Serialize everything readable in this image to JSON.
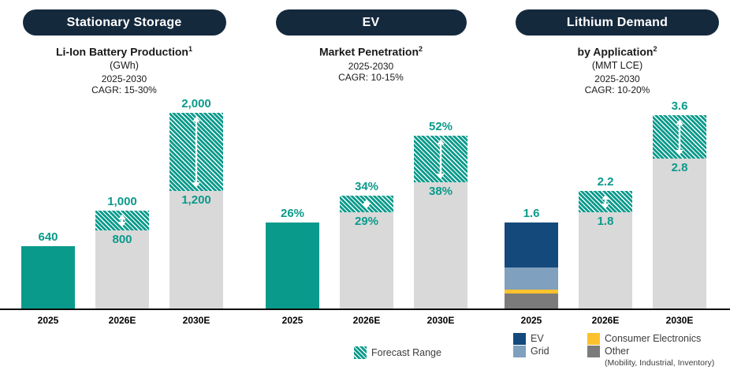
{
  "colors": {
    "teal": "#0A9A8B",
    "badge_navy": "#15293D",
    "bar_gray": "#D9D9D9",
    "ev_navy": "#14497B",
    "grid_blue": "#7FA0BE",
    "consumer_electronics_yellow": "#FCC22E",
    "other_gray": "#7B7B7B",
    "axis_black": "#060606",
    "title_dark": "#1A1A1A",
    "arrow_white": "#FFFFFF"
  },
  "panels": [
    {
      "badge": "Stationary Storage",
      "title": "Li-Ion Battery Production",
      "title_sup": "1",
      "unit": "(GWh)",
      "period": "2025-2030",
      "cagr": "CAGR: 15-30%"
    },
    {
      "badge": "EV",
      "title": "Market Penetration",
      "title_sup": "2",
      "unit": "",
      "period": "2025-2030",
      "cagr": "CAGR: 10-15%"
    },
    {
      "badge": "Lithium Demand",
      "title": "by Application",
      "title_sup": "2",
      "unit": "(MMT LCE)",
      "period": "2025-2030",
      "cagr": "CAGR: 10-20%"
    }
  ],
  "chart_data": [
    {
      "type": "bar",
      "title": "Stationary Storage Li-Ion Battery Production (GWh)",
      "subtitle": "2025-2030 CAGR: 15-30%",
      "categories": [
        "2025",
        "2026E",
        "2030E"
      ],
      "ylim": [
        0,
        2000
      ],
      "grid": false,
      "bars": [
        {
          "kind": "solid",
          "value": 640,
          "label": "640"
        },
        {
          "kind": "range",
          "low": 800,
          "high": 1000,
          "low_label": "800",
          "high_label": "1,000"
        },
        {
          "kind": "range",
          "low": 1200,
          "high": 2000,
          "low_label": "1,200",
          "high_label": "2,000"
        }
      ]
    },
    {
      "type": "bar",
      "title": "EV Market Penetration (%)",
      "subtitle": "2025-2030 CAGR: 10-15%",
      "categories": [
        "2025",
        "2026E",
        "2030E"
      ],
      "ylim": [
        0,
        59
      ],
      "grid": false,
      "bars": [
        {
          "kind": "solid",
          "value": 26,
          "label": "26%"
        },
        {
          "kind": "range",
          "low": 29,
          "high": 34,
          "low_label": "29%",
          "high_label": "34%"
        },
        {
          "kind": "range",
          "low": 38,
          "high": 52,
          "low_label": "38%",
          "high_label": "52%"
        }
      ]
    },
    {
      "type": "bar",
      "title": "Lithium Demand by Application (MMT LCE)",
      "subtitle": "2025-2030 CAGR: 10-20%",
      "categories": [
        "2025",
        "2026E",
        "2030E"
      ],
      "ylim": [
        0,
        3.65
      ],
      "grid": false,
      "bars": [
        {
          "kind": "stacked",
          "total": 1.6,
          "label": "1.6",
          "segments": [
            {
              "name": "Other",
              "value": 0.28,
              "color_key": "other_gray"
            },
            {
              "name": "Consumer Electronics",
              "value": 0.07,
              "color_key": "consumer_electronics_yellow"
            },
            {
              "name": "Grid",
              "value": 0.41,
              "color_key": "grid_blue"
            },
            {
              "name": "EV",
              "value": 0.84,
              "color_key": "ev_navy"
            }
          ]
        },
        {
          "kind": "range",
          "low": 1.8,
          "high": 2.2,
          "low_label": "1.8",
          "high_label": "2.2"
        },
        {
          "kind": "range",
          "low": 2.8,
          "high": 3.6,
          "low_label": "2.8",
          "high_label": "3.6"
        }
      ]
    }
  ],
  "legend": {
    "forecast_range_label": "Forecast Range",
    "stack_items": [
      {
        "label": "EV",
        "color_key": "ev_navy"
      },
      {
        "label": "Grid",
        "color_key": "grid_blue"
      },
      {
        "label": "Consumer Electronics",
        "color_key": "consumer_electronics_yellow"
      },
      {
        "label": "Other",
        "color_key": "other_gray",
        "sublabel": "(Mobility, Industrial, Inventory)"
      }
    ]
  }
}
